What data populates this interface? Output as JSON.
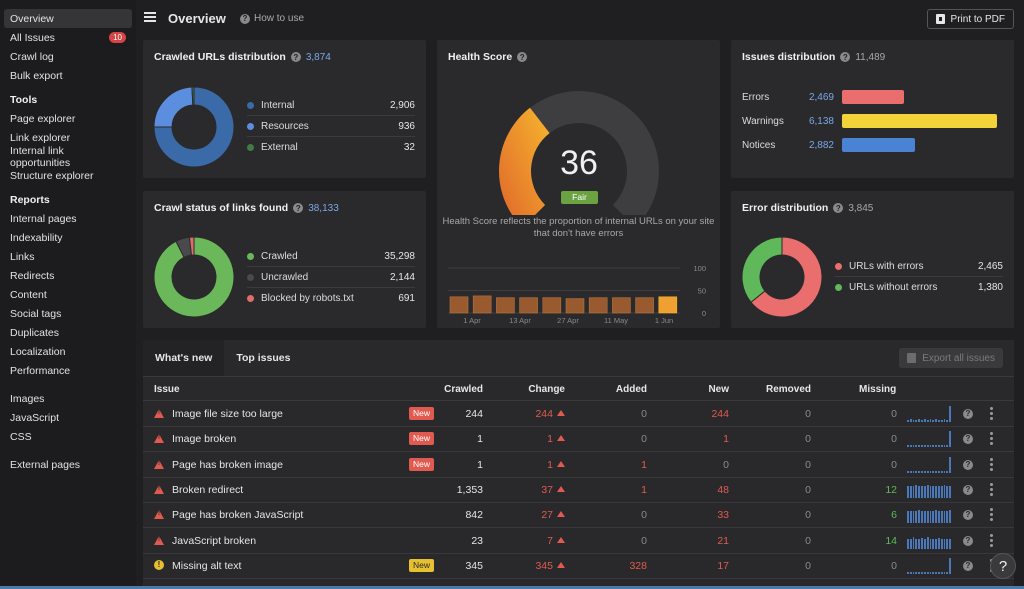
{
  "sidebar": {
    "items_top": [
      {
        "label": "Overview",
        "active": true
      },
      {
        "label": "All Issues",
        "badge": "10"
      },
      {
        "label": "Crawl log"
      },
      {
        "label": "Bulk export"
      }
    ],
    "tools_heading": "Tools",
    "tools": [
      "Page explorer",
      "Link explorer",
      "Internal link opportunities",
      "Structure explorer"
    ],
    "reports_heading": "Reports",
    "reports": [
      "Internal pages",
      "Indexability",
      "Links",
      "Redirects",
      "Content",
      "Social tags",
      "Duplicates",
      "Localization",
      "Performance"
    ],
    "resources": [
      "Images",
      "JavaScript",
      "CSS"
    ],
    "external": [
      "External pages"
    ]
  },
  "header": {
    "title": "Overview",
    "how_to": "How to use",
    "pdf_button": "Print to PDF"
  },
  "crawled_urls": {
    "title": "Crawled URLs distribution",
    "total": "3,874",
    "rows": [
      {
        "label": "Internal",
        "value": "2,906",
        "color": "#3b6aa8"
      },
      {
        "label": "Resources",
        "value": "936",
        "color": "#5c8ee0"
      },
      {
        "label": "External",
        "value": "32",
        "color": "#3f7d44"
      }
    ]
  },
  "crawl_status": {
    "title": "Crawl status of links found",
    "total": "38,133",
    "rows": [
      {
        "label": "Crawled",
        "value": "35,298",
        "color": "#6ab85a"
      },
      {
        "label": "Uncrawled",
        "value": "2,144",
        "color": "#4a4a4c"
      },
      {
        "label": "Blocked by robots.txt",
        "value": "691",
        "color": "#e06c6c"
      }
    ]
  },
  "health_score": {
    "title": "Health Score",
    "score": "36",
    "score_value": 36,
    "rating": "Fair",
    "description": "Health Score reflects the proportion of internal URLs on your site that don't have errors",
    "y_ticks": [
      "100",
      "50",
      "0"
    ],
    "x_ticks": [
      "1 Apr",
      "13 Apr",
      "27 Apr",
      "11 May",
      "1 Jun"
    ],
    "history": [
      36,
      38,
      34,
      34,
      34,
      32,
      34,
      34,
      34,
      36
    ]
  },
  "issues_distribution": {
    "title": "Issues distribution",
    "total": "11,489",
    "rows": [
      {
        "label": "Errors",
        "value": "2,469",
        "count": 2469,
        "color": "#ea6e6e"
      },
      {
        "label": "Warnings",
        "value": "6,138",
        "count": 6138,
        "color": "#f2d33a"
      },
      {
        "label": "Notices",
        "value": "2,882",
        "count": 2882,
        "color": "#4a82d4"
      }
    ]
  },
  "error_distribution": {
    "title": "Error distribution",
    "total": "3,845",
    "rows": [
      {
        "label": "URLs with errors",
        "value": "2,465",
        "color": "#ea6e6e"
      },
      {
        "label": "URLs without errors",
        "value": "1,380",
        "color": "#5fb85a"
      }
    ]
  },
  "table": {
    "tabs": [
      "What's new",
      "Top issues"
    ],
    "export_button": "Export all issues",
    "columns": [
      "Issue",
      "Crawled",
      "Change",
      "Added",
      "New",
      "Removed",
      "Missing"
    ],
    "rows": [
      {
        "type": "error",
        "issue": "Image file size too large",
        "badge": "New",
        "crawled": "244",
        "change": "244",
        "added": "0",
        "new": "244",
        "removed": "0",
        "missing": "0"
      },
      {
        "type": "error",
        "issue": "Image broken",
        "badge": "New",
        "crawled": "1",
        "change": "1",
        "added": "0",
        "new": "1",
        "removed": "0",
        "missing": "0"
      },
      {
        "type": "error",
        "issue": "Page has broken image",
        "badge": "New",
        "crawled": "1",
        "change": "1",
        "added": "1",
        "new": "0",
        "removed": "0",
        "missing": "0"
      },
      {
        "type": "error",
        "issue": "Broken redirect",
        "badge": "",
        "crawled": "1,353",
        "change": "37",
        "added": "1",
        "new": "48",
        "removed": "0",
        "missing": "12"
      },
      {
        "type": "error",
        "issue": "Page has broken JavaScript",
        "badge": "",
        "crawled": "842",
        "change": "27",
        "added": "0",
        "new": "33",
        "removed": "0",
        "missing": "6"
      },
      {
        "type": "error",
        "issue": "JavaScript broken",
        "badge": "",
        "crawled": "23",
        "change": "7",
        "added": "0",
        "new": "21",
        "removed": "0",
        "missing": "14"
      },
      {
        "type": "warning",
        "issue": "Missing alt text",
        "badge": "New",
        "crawled": "345",
        "change": "345",
        "added": "328",
        "new": "17",
        "removed": "0",
        "missing": "0"
      }
    ]
  },
  "help_fab": "?"
}
